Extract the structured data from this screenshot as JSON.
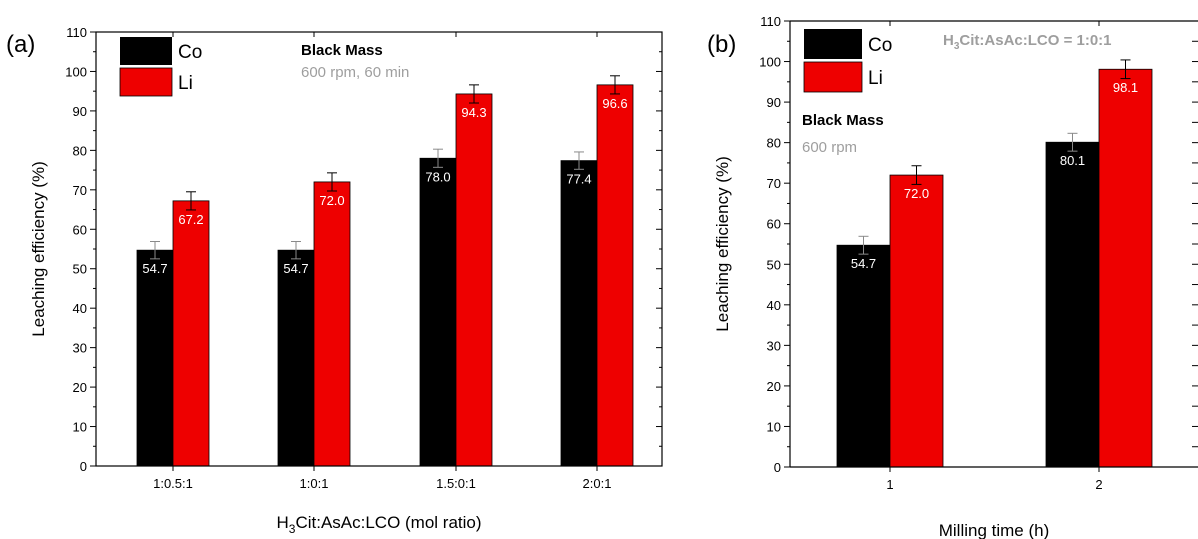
{
  "chart_data": [
    {
      "type": "bar",
      "panel_label": "(a)",
      "categories": [
        "1:0.5:1",
        "1:0:1",
        "1.5:0:1",
        "2:0:1"
      ],
      "series": [
        {
          "name": "Co",
          "color": "#000000",
          "values": [
            54.7,
            54.7,
            78.0,
            77.4
          ],
          "errors": [
            2.2,
            2.2,
            2.3,
            2.2
          ],
          "labels": [
            "54.7",
            "54.7",
            "78.0",
            "77.4"
          ]
        },
        {
          "name": "Li",
          "color": "#ee0000",
          "values": [
            67.2,
            72.0,
            94.3,
            96.6
          ],
          "errors": [
            2.3,
            2.3,
            2.3,
            2.3
          ],
          "labels": [
            "67.2",
            "72.0",
            "94.3",
            "96.6"
          ]
        }
      ],
      "xlabel_main": "H",
      "xlabel_sub": "3",
      "xlabel_rest": "Cit:AsAc:LCO (mol ratio)",
      "ylabel": "Leaching efficiency (%)",
      "ylim": [
        0,
        110
      ],
      "yticks": [
        "0",
        "10",
        "20",
        "30",
        "40",
        "50",
        "60",
        "70",
        "80",
        "90",
        "100",
        "110"
      ],
      "annotations": {
        "bold": "Black Mass",
        "gray": "600 rpm, 60 min"
      },
      "legend_position": "top-left",
      "grid": false
    },
    {
      "type": "bar",
      "panel_label": "(b)",
      "categories": [
        "1",
        "2"
      ],
      "series": [
        {
          "name": "Co",
          "color": "#000000",
          "values": [
            54.7,
            80.1
          ],
          "errors": [
            2.2,
            2.2
          ],
          "labels": [
            "54.7",
            "80.1"
          ]
        },
        {
          "name": "Li",
          "color": "#ee0000",
          "values": [
            72.0,
            98.1
          ],
          "errors": [
            2.3,
            2.3
          ],
          "labels": [
            "72.0",
            "98.1"
          ]
        }
      ],
      "xlabel": "Milling time (h)",
      "ylabel": "Leaching efficiency (%)",
      "ylim": [
        0,
        110
      ],
      "yticks": [
        "0",
        "10",
        "20",
        "30",
        "40",
        "50",
        "60",
        "70",
        "80",
        "90",
        "100",
        "110"
      ],
      "annotations": {
        "bold": "Black Mass",
        "gray": "600 rpm",
        "ratio_main": "H",
        "ratio_sub": "3",
        "ratio_rest": "Cit:AsAc:LCO = 1:0:1"
      },
      "legend_position": "top-left",
      "grid": false
    }
  ]
}
